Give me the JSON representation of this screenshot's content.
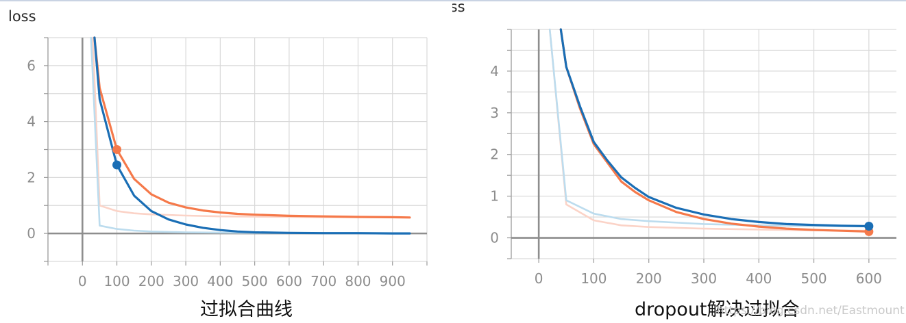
{
  "chart_data": [
    {
      "type": "line",
      "title": "",
      "ylabel": "loss",
      "xlabel": "",
      "caption": "过拟合曲线",
      "xlim": [
        -100,
        1000
      ],
      "ylim": [
        -1,
        7
      ],
      "xticks": [
        0,
        100,
        200,
        300,
        400,
        500,
        600,
        700,
        800,
        900
      ],
      "yticks": [
        0,
        2,
        4,
        6
      ],
      "grid": true,
      "series": [
        {
          "role": "raw",
          "color": "#fbd3c7",
          "x": [
            30,
            50,
            100,
            150,
            200,
            300,
            400,
            500,
            600,
            700,
            800,
            900,
            950
          ],
          "y": [
            7.0,
            1.0,
            0.8,
            0.72,
            0.68,
            0.64,
            0.61,
            0.6,
            0.59,
            0.58,
            0.58,
            0.57,
            0.57
          ]
        },
        {
          "role": "raw",
          "color": "#bcdcee",
          "x": [
            25,
            50,
            100,
            150,
            200,
            300,
            400,
            500,
            600,
            700,
            800,
            900,
            950
          ],
          "y": [
            7.0,
            0.28,
            0.16,
            0.1,
            0.07,
            0.04,
            0.03,
            0.02,
            0.015,
            0.01,
            0.01,
            0.01,
            0.01
          ],
          "smoothed": false
        },
        {
          "role": "smoothed",
          "color": "#f5794a",
          "x": [
            35,
            50,
            100,
            150,
            200,
            250,
            300,
            350,
            400,
            450,
            500,
            600,
            700,
            800,
            900,
            950
          ],
          "y": [
            7.0,
            5.2,
            3.0,
            1.95,
            1.4,
            1.1,
            0.93,
            0.82,
            0.75,
            0.7,
            0.67,
            0.63,
            0.61,
            0.59,
            0.58,
            0.57
          ],
          "marker": {
            "x": 100,
            "y": 3.0
          }
        },
        {
          "role": "smoothed",
          "color": "#1a6eb5",
          "x": [
            35,
            50,
            100,
            150,
            200,
            250,
            300,
            350,
            400,
            450,
            500,
            600,
            700,
            800,
            900,
            950
          ],
          "y": [
            7.0,
            4.8,
            2.45,
            1.35,
            0.8,
            0.5,
            0.32,
            0.2,
            0.12,
            0.07,
            0.04,
            0.02,
            0.01,
            0.01,
            0.0,
            0.0
          ],
          "marker": {
            "x": 100,
            "y": 2.45
          }
        }
      ]
    },
    {
      "type": "line",
      "title": "",
      "ylabel": "loss",
      "xlabel": "",
      "caption": "dropout解决过拟合",
      "xlim": [
        -50,
        650
      ],
      "ylim": [
        -0.5,
        5
      ],
      "xticks": [
        0,
        100,
        200,
        300,
        400,
        500,
        600
      ],
      "yticks": [
        0,
        1,
        2,
        3,
        4
      ],
      "grid": true,
      "series": [
        {
          "role": "raw",
          "color": "#fbd3c7",
          "x": [
            20,
            50,
            100,
            150,
            200,
            300,
            400,
            500,
            600
          ],
          "y": [
            5.0,
            0.8,
            0.42,
            0.3,
            0.26,
            0.22,
            0.2,
            0.18,
            0.17
          ]
        },
        {
          "role": "raw",
          "color": "#bcdcee",
          "x": [
            20,
            50,
            100,
            150,
            200,
            300,
            400,
            500,
            600
          ],
          "y": [
            5.0,
            0.9,
            0.58,
            0.45,
            0.4,
            0.33,
            0.3,
            0.28,
            0.27
          ]
        },
        {
          "role": "smoothed",
          "color": "#f5794a",
          "x": [
            40,
            50,
            75,
            100,
            125,
            150,
            175,
            200,
            250,
            300,
            350,
            400,
            450,
            500,
            550,
            600
          ],
          "y": [
            5.0,
            4.1,
            3.1,
            2.25,
            1.8,
            1.35,
            1.1,
            0.9,
            0.62,
            0.45,
            0.34,
            0.27,
            0.22,
            0.19,
            0.17,
            0.15
          ],
          "marker": {
            "x": 600,
            "y": 0.15
          }
        },
        {
          "role": "smoothed",
          "color": "#1a6eb5",
          "x": [
            40,
            50,
            75,
            100,
            125,
            150,
            175,
            200,
            250,
            300,
            350,
            400,
            450,
            500,
            550,
            600
          ],
          "y": [
            5.0,
            4.1,
            3.15,
            2.3,
            1.85,
            1.45,
            1.2,
            0.98,
            0.72,
            0.56,
            0.45,
            0.38,
            0.33,
            0.31,
            0.29,
            0.28
          ],
          "marker": {
            "x": 600,
            "y": 0.28
          }
        }
      ]
    }
  ],
  "watermark": "https://blog.csdn.net/Eastmount"
}
